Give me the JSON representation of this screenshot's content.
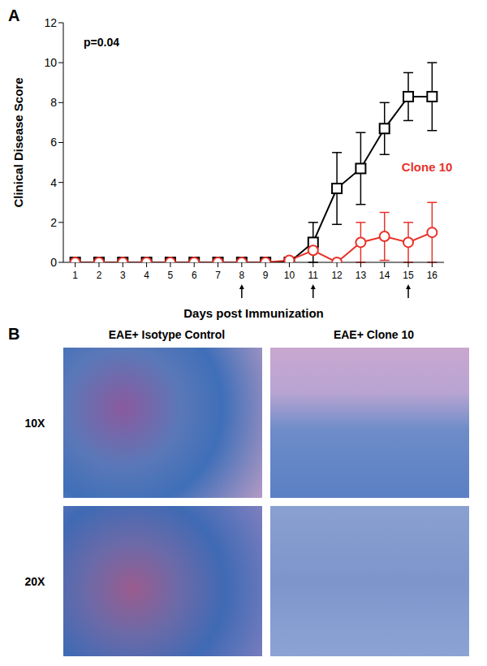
{
  "chart_data": {
    "type": "line",
    "panel_label": "A",
    "x_label": "Days post Immunization",
    "y_label": "Clinical Disease Score",
    "annotation": "p=0.04",
    "x": [
      1,
      2,
      3,
      4,
      5,
      6,
      7,
      8,
      9,
      10,
      11,
      12,
      13,
      14,
      15,
      16
    ],
    "xlim": [
      0.5,
      16.5
    ],
    "xticks": [
      1,
      2,
      3,
      4,
      5,
      6,
      7,
      8,
      9,
      10,
      11,
      12,
      13,
      14,
      15,
      16
    ],
    "ylim": [
      0,
      12
    ],
    "yticks": [
      0,
      2,
      4,
      6,
      8,
      10,
      12
    ],
    "arrows_at": [
      8,
      11,
      15
    ],
    "series": [
      {
        "name": "Isotype Control",
        "color": "#000000",
        "marker": "square",
        "values": [
          0,
          0,
          0,
          0,
          0,
          0,
          0,
          0,
          0,
          0,
          1,
          3.7,
          4.7,
          6.7,
          8.3,
          8.3
        ],
        "errors": [
          0,
          0,
          0,
          0,
          0,
          0,
          0,
          0,
          0,
          0,
          1,
          1.8,
          1.8,
          1.3,
          1.2,
          1.7
        ]
      },
      {
        "name": "Clone 10",
        "color": "#e8322a",
        "marker": "circle",
        "values": [
          0,
          0,
          0,
          0,
          0,
          0,
          0,
          0,
          0,
          0.1,
          0.6,
          0,
          1,
          1.3,
          1,
          1.5
        ],
        "errors": [
          0,
          0,
          0,
          0,
          0,
          0,
          0,
          0,
          0,
          0,
          0,
          0,
          1,
          1.2,
          1,
          1.5
        ]
      }
    ]
  },
  "panel_b": {
    "label": "B",
    "columns": [
      "EAE+ Isotype Control",
      "EAE+ Clone 10"
    ],
    "rows": [
      "10X",
      "20X"
    ]
  }
}
